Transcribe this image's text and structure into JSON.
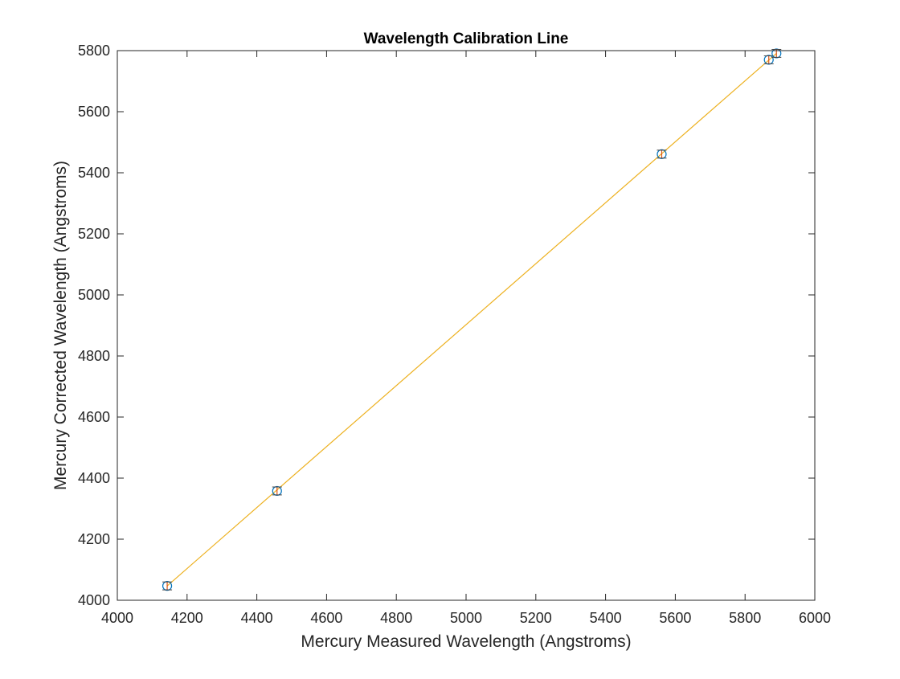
{
  "chart_data": {
    "type": "scatter",
    "title": "Wavelength Calibration Line",
    "xlabel": "Mercury Measured Wavelength (Angstroms)",
    "ylabel": "Mercury Corrected Wavelength (Angstroms)",
    "xlim": [
      4000,
      6000
    ],
    "ylim": [
      4000,
      5800
    ],
    "xticks": [
      4000,
      4200,
      4400,
      4600,
      4800,
      5000,
      5200,
      5400,
      5600,
      5800,
      6000
    ],
    "yticks": [
      4000,
      4200,
      4400,
      4600,
      4800,
      5000,
      5200,
      5400,
      5600,
      5800
    ],
    "xtick_labels": [
      "4000",
      "4200",
      "4400",
      "4600",
      "4800",
      "5000",
      "5200",
      "5400",
      "5600",
      "5800",
      "6000"
    ],
    "ytick_labels": [
      "4000",
      "4200",
      "4400",
      "4600",
      "4800",
      "5000",
      "5200",
      "5400",
      "5600",
      "5800"
    ],
    "grid": false,
    "legend": "none",
    "series": [
      {
        "kind": "points-with-error-bars",
        "marker": "circle",
        "color": "#0072BD",
        "errorbar_color": "#D95319",
        "x": [
          4143,
          4458,
          5561,
          5868,
          5890
        ],
        "y": [
          4047,
          4358,
          5461,
          5770,
          5791
        ],
        "yerr": [
          13,
          13,
          13,
          13,
          13
        ]
      },
      {
        "kind": "fit-line",
        "color": "#EDB120",
        "x": [
          4143,
          5890
        ],
        "y": [
          4047,
          5791
        ]
      }
    ]
  }
}
